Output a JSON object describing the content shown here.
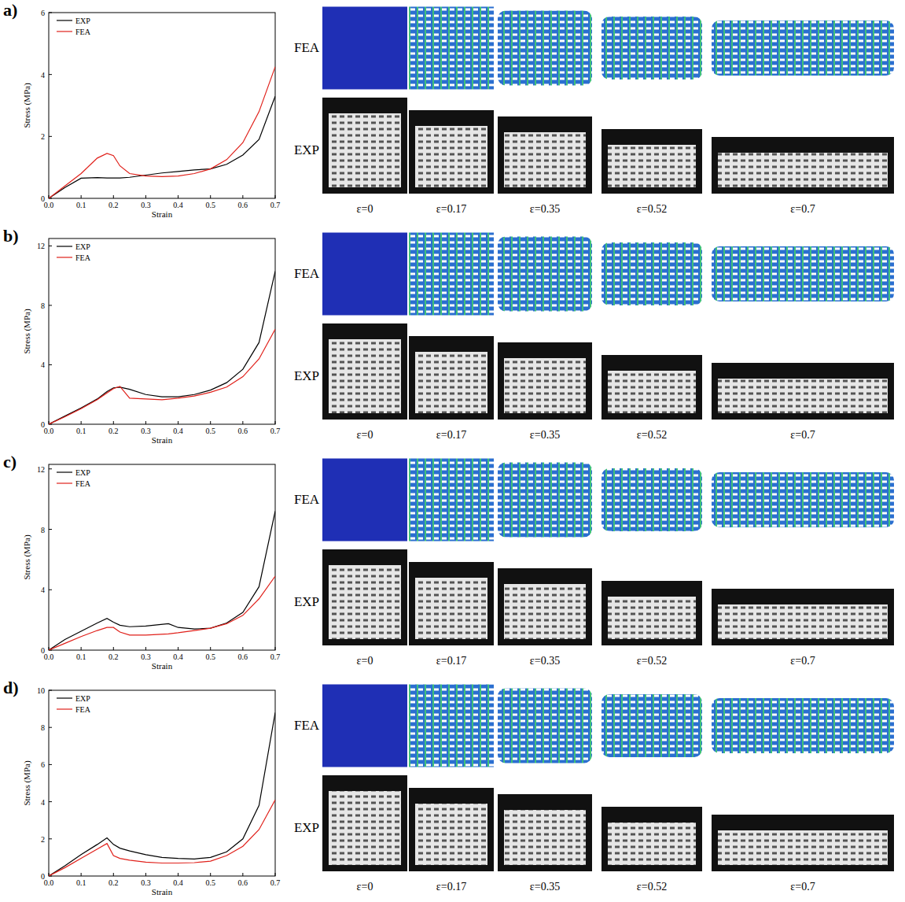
{
  "chart_data": [
    {
      "type": "line",
      "title": "a)",
      "x_label": "Strain",
      "y_label": "Stress (MPa)",
      "x": [
        0,
        0.05,
        0.1,
        0.15,
        0.18,
        0.2,
        0.22,
        0.25,
        0.3,
        0.35,
        0.4,
        0.45,
        0.5,
        0.55,
        0.6,
        0.65,
        0.7
      ],
      "series": [
        {
          "name": "EXP",
          "color": "#000000",
          "values": [
            0,
            0.35,
            0.65,
            0.67,
            0.66,
            0.66,
            0.66,
            0.68,
            0.75,
            0.82,
            0.87,
            0.92,
            0.95,
            1.1,
            1.4,
            1.9,
            3.3
          ]
        },
        {
          "name": "FEA",
          "color": "#e0201a",
          "values": [
            0,
            0.4,
            0.8,
            1.3,
            1.45,
            1.38,
            1.05,
            0.8,
            0.72,
            0.7,
            0.72,
            0.8,
            0.95,
            1.25,
            1.8,
            2.8,
            4.25
          ]
        }
      ],
      "xlim": [
        0,
        0.7
      ],
      "ylim": [
        0,
        6
      ],
      "xticks": [
        {
          "value": 0,
          "label": "0.0"
        },
        0.1,
        0.2,
        0.3,
        0.4,
        0.5,
        0.6,
        0.7
      ],
      "yticks": [
        0,
        2,
        4,
        6
      ],
      "legend": "upper left"
    },
    {
      "type": "line",
      "title": "b)",
      "x_label": "Strain",
      "y_label": "Stress (MPa)",
      "x": [
        0,
        0.05,
        0.1,
        0.15,
        0.18,
        0.2,
        0.22,
        0.25,
        0.3,
        0.35,
        0.4,
        0.45,
        0.5,
        0.55,
        0.6,
        0.65,
        0.7
      ],
      "series": [
        {
          "name": "EXP",
          "color": "#000000",
          "values": [
            0,
            0.55,
            1.1,
            1.7,
            2.2,
            2.45,
            2.5,
            2.35,
            2.0,
            1.85,
            1.85,
            2.0,
            2.3,
            2.8,
            3.7,
            5.5,
            10.3
          ]
        },
        {
          "name": "FEA",
          "color": "#e0201a",
          "values": [
            0,
            0.5,
            1.05,
            1.65,
            2.1,
            2.4,
            2.55,
            1.75,
            1.7,
            1.65,
            1.75,
            1.9,
            2.15,
            2.5,
            3.2,
            4.4,
            6.4
          ]
        }
      ],
      "xlim": [
        0,
        0.7
      ],
      "ylim": [
        0,
        12.5
      ],
      "xticks": [
        {
          "value": 0,
          "label": "0.0"
        },
        0.1,
        0.2,
        0.3,
        0.4,
        0.5,
        0.6,
        0.7
      ],
      "yticks": [
        0,
        4,
        8,
        12
      ],
      "legend": "upper left"
    },
    {
      "type": "line",
      "title": "c)",
      "x_label": "Strain",
      "y_label": "Stress (MPa)",
      "x": [
        0,
        0.05,
        0.1,
        0.15,
        0.18,
        0.2,
        0.22,
        0.25,
        0.3,
        0.37,
        0.4,
        0.45,
        0.5,
        0.55,
        0.6,
        0.65,
        0.7
      ],
      "series": [
        {
          "name": "EXP",
          "color": "#000000",
          "values": [
            0,
            0.7,
            1.25,
            1.8,
            2.1,
            1.85,
            1.65,
            1.55,
            1.6,
            1.75,
            1.5,
            1.4,
            1.45,
            1.8,
            2.5,
            4.2,
            9.2
          ]
        },
        {
          "name": "FEA",
          "color": "#e0201a",
          "values": [
            0,
            0.45,
            0.9,
            1.3,
            1.5,
            1.5,
            1.2,
            1.0,
            1.0,
            1.08,
            1.15,
            1.3,
            1.45,
            1.75,
            2.3,
            3.4,
            4.9
          ]
        }
      ],
      "xlim": [
        0,
        0.7
      ],
      "ylim": [
        0,
        12.3
      ],
      "xticks": [
        {
          "value": 0,
          "label": "0.0"
        },
        0.1,
        0.2,
        0.3,
        0.4,
        0.5,
        0.6,
        0.7
      ],
      "yticks": [
        0,
        4,
        8,
        12
      ],
      "legend": "upper left"
    },
    {
      "type": "line",
      "title": "d)",
      "x_label": "Strain",
      "y_label": "Stress (MPa)",
      "x": [
        0,
        0.05,
        0.1,
        0.15,
        0.18,
        0.2,
        0.22,
        0.25,
        0.3,
        0.35,
        0.4,
        0.45,
        0.5,
        0.55,
        0.6,
        0.65,
        0.7
      ],
      "series": [
        {
          "name": "EXP",
          "color": "#000000",
          "values": [
            0,
            0.55,
            1.15,
            1.7,
            2.05,
            1.7,
            1.5,
            1.35,
            1.15,
            1.0,
            0.95,
            0.92,
            1.0,
            1.3,
            2.0,
            3.8,
            8.8
          ]
        },
        {
          "name": "FEA",
          "color": "#e0201a",
          "values": [
            0,
            0.45,
            0.95,
            1.45,
            1.75,
            1.1,
            0.95,
            0.85,
            0.75,
            0.7,
            0.7,
            0.72,
            0.8,
            1.1,
            1.6,
            2.5,
            4.1
          ]
        }
      ],
      "xlim": [
        0,
        0.7
      ],
      "ylim": [
        0,
        10
      ],
      "xticks": [
        {
          "value": 0,
          "label": "0.0"
        },
        0.1,
        0.2,
        0.3,
        0.4,
        0.5,
        0.6,
        0.7
      ],
      "yticks": [
        0,
        2,
        4,
        6,
        8,
        10
      ],
      "legend": "upper left"
    }
  ],
  "figure": {
    "row_labels": [
      "FEA",
      "EXP"
    ],
    "captions": [
      "ε=0",
      "ε=0.17",
      "ε=0.35",
      "ε=0.52",
      "ε=0.7"
    ]
  }
}
